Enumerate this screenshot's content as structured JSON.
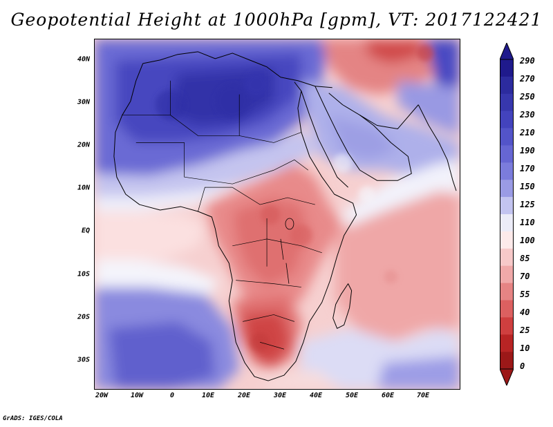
{
  "title": "Geopotential Height at 1000hPa [gpm], VT: 2017122421",
  "credit": "GrADS: IGES/COLA",
  "map": {
    "y_ticks": [
      "40N",
      "30N",
      "20N",
      "10N",
      "EQ",
      "10S",
      "20S",
      "30S"
    ],
    "y_tick_values": [
      40,
      30,
      20,
      10,
      0,
      -10,
      -20,
      -30
    ],
    "x_ticks": [
      "20W",
      "10W",
      "0",
      "10E",
      "20E",
      "30E",
      "40E",
      "50E",
      "60E",
      "70E"
    ],
    "x_tick_values": [
      -20,
      -10,
      0,
      10,
      20,
      30,
      40,
      50,
      60,
      70
    ]
  },
  "colorbar": {
    "labels": [
      "290",
      "270",
      "250",
      "230",
      "210",
      "190",
      "170",
      "150",
      "125",
      "110",
      "100",
      "85",
      "70",
      "55",
      "40",
      "25",
      "10",
      "0"
    ],
    "colors": [
      "#1f1a8c",
      "#2c2b9e",
      "#3737ad",
      "#4343bd",
      "#5354c9",
      "#6666d3",
      "#7b7cdc",
      "#9a9be5",
      "#c3c4f0",
      "#ececf8",
      "#fdeaea",
      "#f7c9c9",
      "#f0a9a9",
      "#e68484",
      "#dc6060",
      "#cf3f3f",
      "#b82424",
      "#9c1818"
    ]
  },
  "colors": {
    "ocean_blue": "#7a78d8",
    "deep_blue": "#3434b0",
    "white": "#f4f4fb",
    "pink": "#f3c4c4",
    "red": "#e47a7a",
    "deep_red": "#cc3c3c",
    "coast": "#000000"
  }
}
